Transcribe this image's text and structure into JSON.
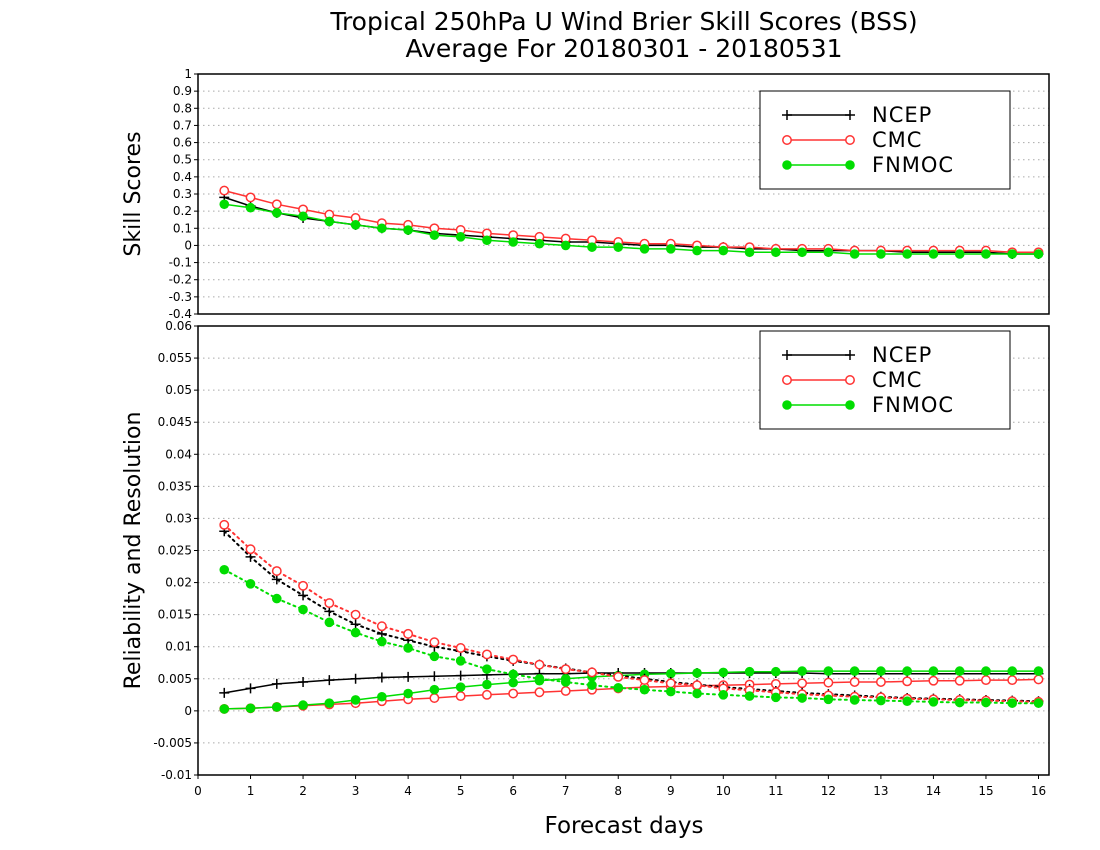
{
  "title_line1": "Tropical 250hPa U Wind Brier Skill Scores (BSS)",
  "title_line2": "Average For 20180301 - 20180531",
  "xlabel": "Forecast days",
  "colors": {
    "NCEP": "#000000",
    "CMC": "#ff3333",
    "FNMOC": "#00dd00",
    "grid": "#aaaaaa"
  },
  "chart_data": [
    {
      "type": "line",
      "ylabel": "Skill Scores",
      "xlim": [
        0,
        16.2
      ],
      "ylim": [
        -0.4,
        1
      ],
      "xticks": [
        0,
        1,
        2,
        3,
        4,
        5,
        6,
        7,
        8,
        9,
        10,
        11,
        12,
        13,
        14,
        15,
        16
      ],
      "yticks": [
        -0.4,
        -0.3,
        -0.2,
        -0.1,
        0,
        0.1,
        0.2,
        0.3,
        0.4,
        0.5,
        0.6,
        0.7,
        0.8,
        0.9,
        1
      ],
      "ytick_labels": [
        "-0.4",
        "-0.3",
        "-0.2",
        "-0.1",
        "0",
        "0.1",
        "0.2",
        "0.3",
        "0.4",
        "0.5",
        "0.6",
        "0.7",
        "0.8",
        "0.9",
        "1"
      ],
      "grid": true,
      "legend_position": "top-right",
      "x": [
        0.5,
        1,
        1.5,
        2,
        2.5,
        3,
        3.5,
        4,
        4.5,
        5,
        5.5,
        6,
        6.5,
        7,
        7.5,
        8,
        8.5,
        9,
        9.5,
        10,
        10.5,
        11,
        11.5,
        12,
        12.5,
        13,
        13.5,
        14,
        14.5,
        15,
        15.5,
        16
      ],
      "series": [
        {
          "name": "NCEP",
          "marker": "plus",
          "dash": false,
          "values": [
            0.28,
            0.23,
            0.19,
            0.16,
            0.14,
            0.12,
            0.1,
            0.09,
            0.07,
            0.06,
            0.05,
            0.04,
            0.03,
            0.02,
            0.02,
            0.01,
            0.0,
            0.0,
            -0.01,
            -0.01,
            -0.02,
            -0.02,
            -0.03,
            -0.03,
            -0.03,
            -0.03,
            -0.04,
            -0.04,
            -0.04,
            -0.04,
            -0.05,
            -0.05
          ]
        },
        {
          "name": "CMC",
          "marker": "open-circle",
          "dash": false,
          "values": [
            0.32,
            0.28,
            0.24,
            0.21,
            0.18,
            0.16,
            0.13,
            0.12,
            0.1,
            0.09,
            0.07,
            0.06,
            0.05,
            0.04,
            0.03,
            0.02,
            0.01,
            0.01,
            0.0,
            -0.01,
            -0.01,
            -0.02,
            -0.02,
            -0.02,
            -0.03,
            -0.03,
            -0.03,
            -0.03,
            -0.03,
            -0.03,
            -0.04,
            -0.04
          ]
        },
        {
          "name": "FNMOC",
          "marker": "filled-circle",
          "dash": false,
          "values": [
            0.24,
            0.22,
            0.19,
            0.17,
            0.14,
            0.12,
            0.1,
            0.09,
            0.06,
            0.05,
            0.03,
            0.02,
            0.01,
            0.0,
            -0.01,
            -0.01,
            -0.02,
            -0.02,
            -0.03,
            -0.03,
            -0.04,
            -0.04,
            -0.04,
            -0.04,
            -0.05,
            -0.05,
            -0.05,
            -0.05,
            -0.05,
            -0.05,
            -0.05,
            -0.05
          ]
        }
      ]
    },
    {
      "type": "line",
      "ylabel": "Reliability and Resolution",
      "xlim": [
        0,
        16.2
      ],
      "ylim": [
        -0.01,
        0.06
      ],
      "xticks": [
        0,
        1,
        2,
        3,
        4,
        5,
        6,
        7,
        8,
        9,
        10,
        11,
        12,
        13,
        14,
        15,
        16
      ],
      "yticks": [
        -0.01,
        -0.005,
        0,
        0.005,
        0.01,
        0.015,
        0.02,
        0.025,
        0.03,
        0.035,
        0.04,
        0.045,
        0.05,
        0.055,
        0.06
      ],
      "ytick_labels": [
        "-0.01",
        "-0.005",
        "0",
        "0.005",
        "0.01",
        "0.015",
        "0.02",
        "0.025",
        "0.03",
        "0.035",
        "0.04",
        "0.045",
        "0.05",
        "0.055",
        "0.06"
      ],
      "grid": true,
      "legend_position": "top-right",
      "x": [
        0.5,
        1,
        1.5,
        2,
        2.5,
        3,
        3.5,
        4,
        4.5,
        5,
        5.5,
        6,
        6.5,
        7,
        7.5,
        8,
        8.5,
        9,
        9.5,
        10,
        10.5,
        11,
        11.5,
        12,
        12.5,
        13,
        13.5,
        14,
        14.5,
        15,
        15.5,
        16
      ],
      "series": [
        {
          "name": "NCEP",
          "metric": "resolution",
          "marker": "plus",
          "dash": false,
          "values": [
            0.0028,
            0.0035,
            0.0042,
            0.0045,
            0.0048,
            0.005,
            0.0052,
            0.0053,
            0.0054,
            0.0055,
            0.0056,
            0.0057,
            0.0058,
            0.0058,
            0.0059,
            0.0059,
            0.0059,
            0.0059,
            0.0059,
            0.0059,
            0.0059,
            0.0059,
            0.0059,
            0.0058,
            0.0058,
            0.0058,
            0.0058,
            0.0058,
            0.0058,
            0.0058,
            0.0058,
            0.0058
          ]
        },
        {
          "name": "CMC",
          "metric": "resolution",
          "marker": "open-circle",
          "dash": false,
          "values": [
            0.0003,
            0.0004,
            0.0006,
            0.0008,
            0.001,
            0.0012,
            0.0015,
            0.0018,
            0.002,
            0.0023,
            0.0025,
            0.0027,
            0.0029,
            0.0031,
            0.0033,
            0.0035,
            0.0037,
            0.0038,
            0.0039,
            0.004,
            0.0041,
            0.0042,
            0.0043,
            0.0044,
            0.0045,
            0.0045,
            0.0046,
            0.0047,
            0.0047,
            0.0048,
            0.0048,
            0.0049
          ]
        },
        {
          "name": "FNMOC",
          "metric": "resolution",
          "marker": "filled-circle",
          "dash": false,
          "values": [
            0.0003,
            0.0004,
            0.0006,
            0.0009,
            0.0012,
            0.0017,
            0.0022,
            0.0027,
            0.0033,
            0.0037,
            0.0041,
            0.0044,
            0.0047,
            0.005,
            0.0053,
            0.0055,
            0.0057,
            0.0058,
            0.0059,
            0.006,
            0.0061,
            0.0061,
            0.0062,
            0.0062,
            0.0062,
            0.0062,
            0.0062,
            0.0062,
            0.0062,
            0.0062,
            0.0062,
            0.0062
          ]
        },
        {
          "name": "NCEP",
          "metric": "reliability",
          "marker": "plus",
          "dash": true,
          "values": [
            0.028,
            0.024,
            0.0205,
            0.018,
            0.0155,
            0.0135,
            0.012,
            0.011,
            0.01,
            0.0093,
            0.0085,
            0.0078,
            0.0072,
            0.0066,
            0.006,
            0.0055,
            0.005,
            0.0045,
            0.0041,
            0.0037,
            0.0034,
            0.0031,
            0.0028,
            0.0026,
            0.0024,
            0.0022,
            0.002,
            0.0019,
            0.0018,
            0.0017,
            0.0016,
            0.0015
          ]
        },
        {
          "name": "CMC",
          "metric": "reliability",
          "marker": "open-circle",
          "dash": true,
          "values": [
            0.029,
            0.0252,
            0.0218,
            0.0195,
            0.0168,
            0.015,
            0.0132,
            0.012,
            0.0107,
            0.0098,
            0.0088,
            0.008,
            0.0072,
            0.0065,
            0.006,
            0.0053,
            0.0048,
            0.0043,
            0.004,
            0.0035,
            0.0032,
            0.0029,
            0.0026,
            0.0024,
            0.0022,
            0.0021,
            0.0019,
            0.0018,
            0.0017,
            0.0016,
            0.0015,
            0.0014
          ]
        },
        {
          "name": "FNMOC",
          "metric": "reliability",
          "marker": "filled-circle",
          "dash": true,
          "values": [
            0.022,
            0.0198,
            0.0175,
            0.0158,
            0.0138,
            0.0122,
            0.0108,
            0.0098,
            0.0085,
            0.0078,
            0.0065,
            0.0057,
            0.005,
            0.0045,
            0.004,
            0.0036,
            0.0033,
            0.003,
            0.0027,
            0.0025,
            0.0023,
            0.0021,
            0.002,
            0.0018,
            0.0017,
            0.0016,
            0.0015,
            0.0014,
            0.0013,
            0.0013,
            0.0012,
            0.0012
          ]
        }
      ]
    }
  ]
}
